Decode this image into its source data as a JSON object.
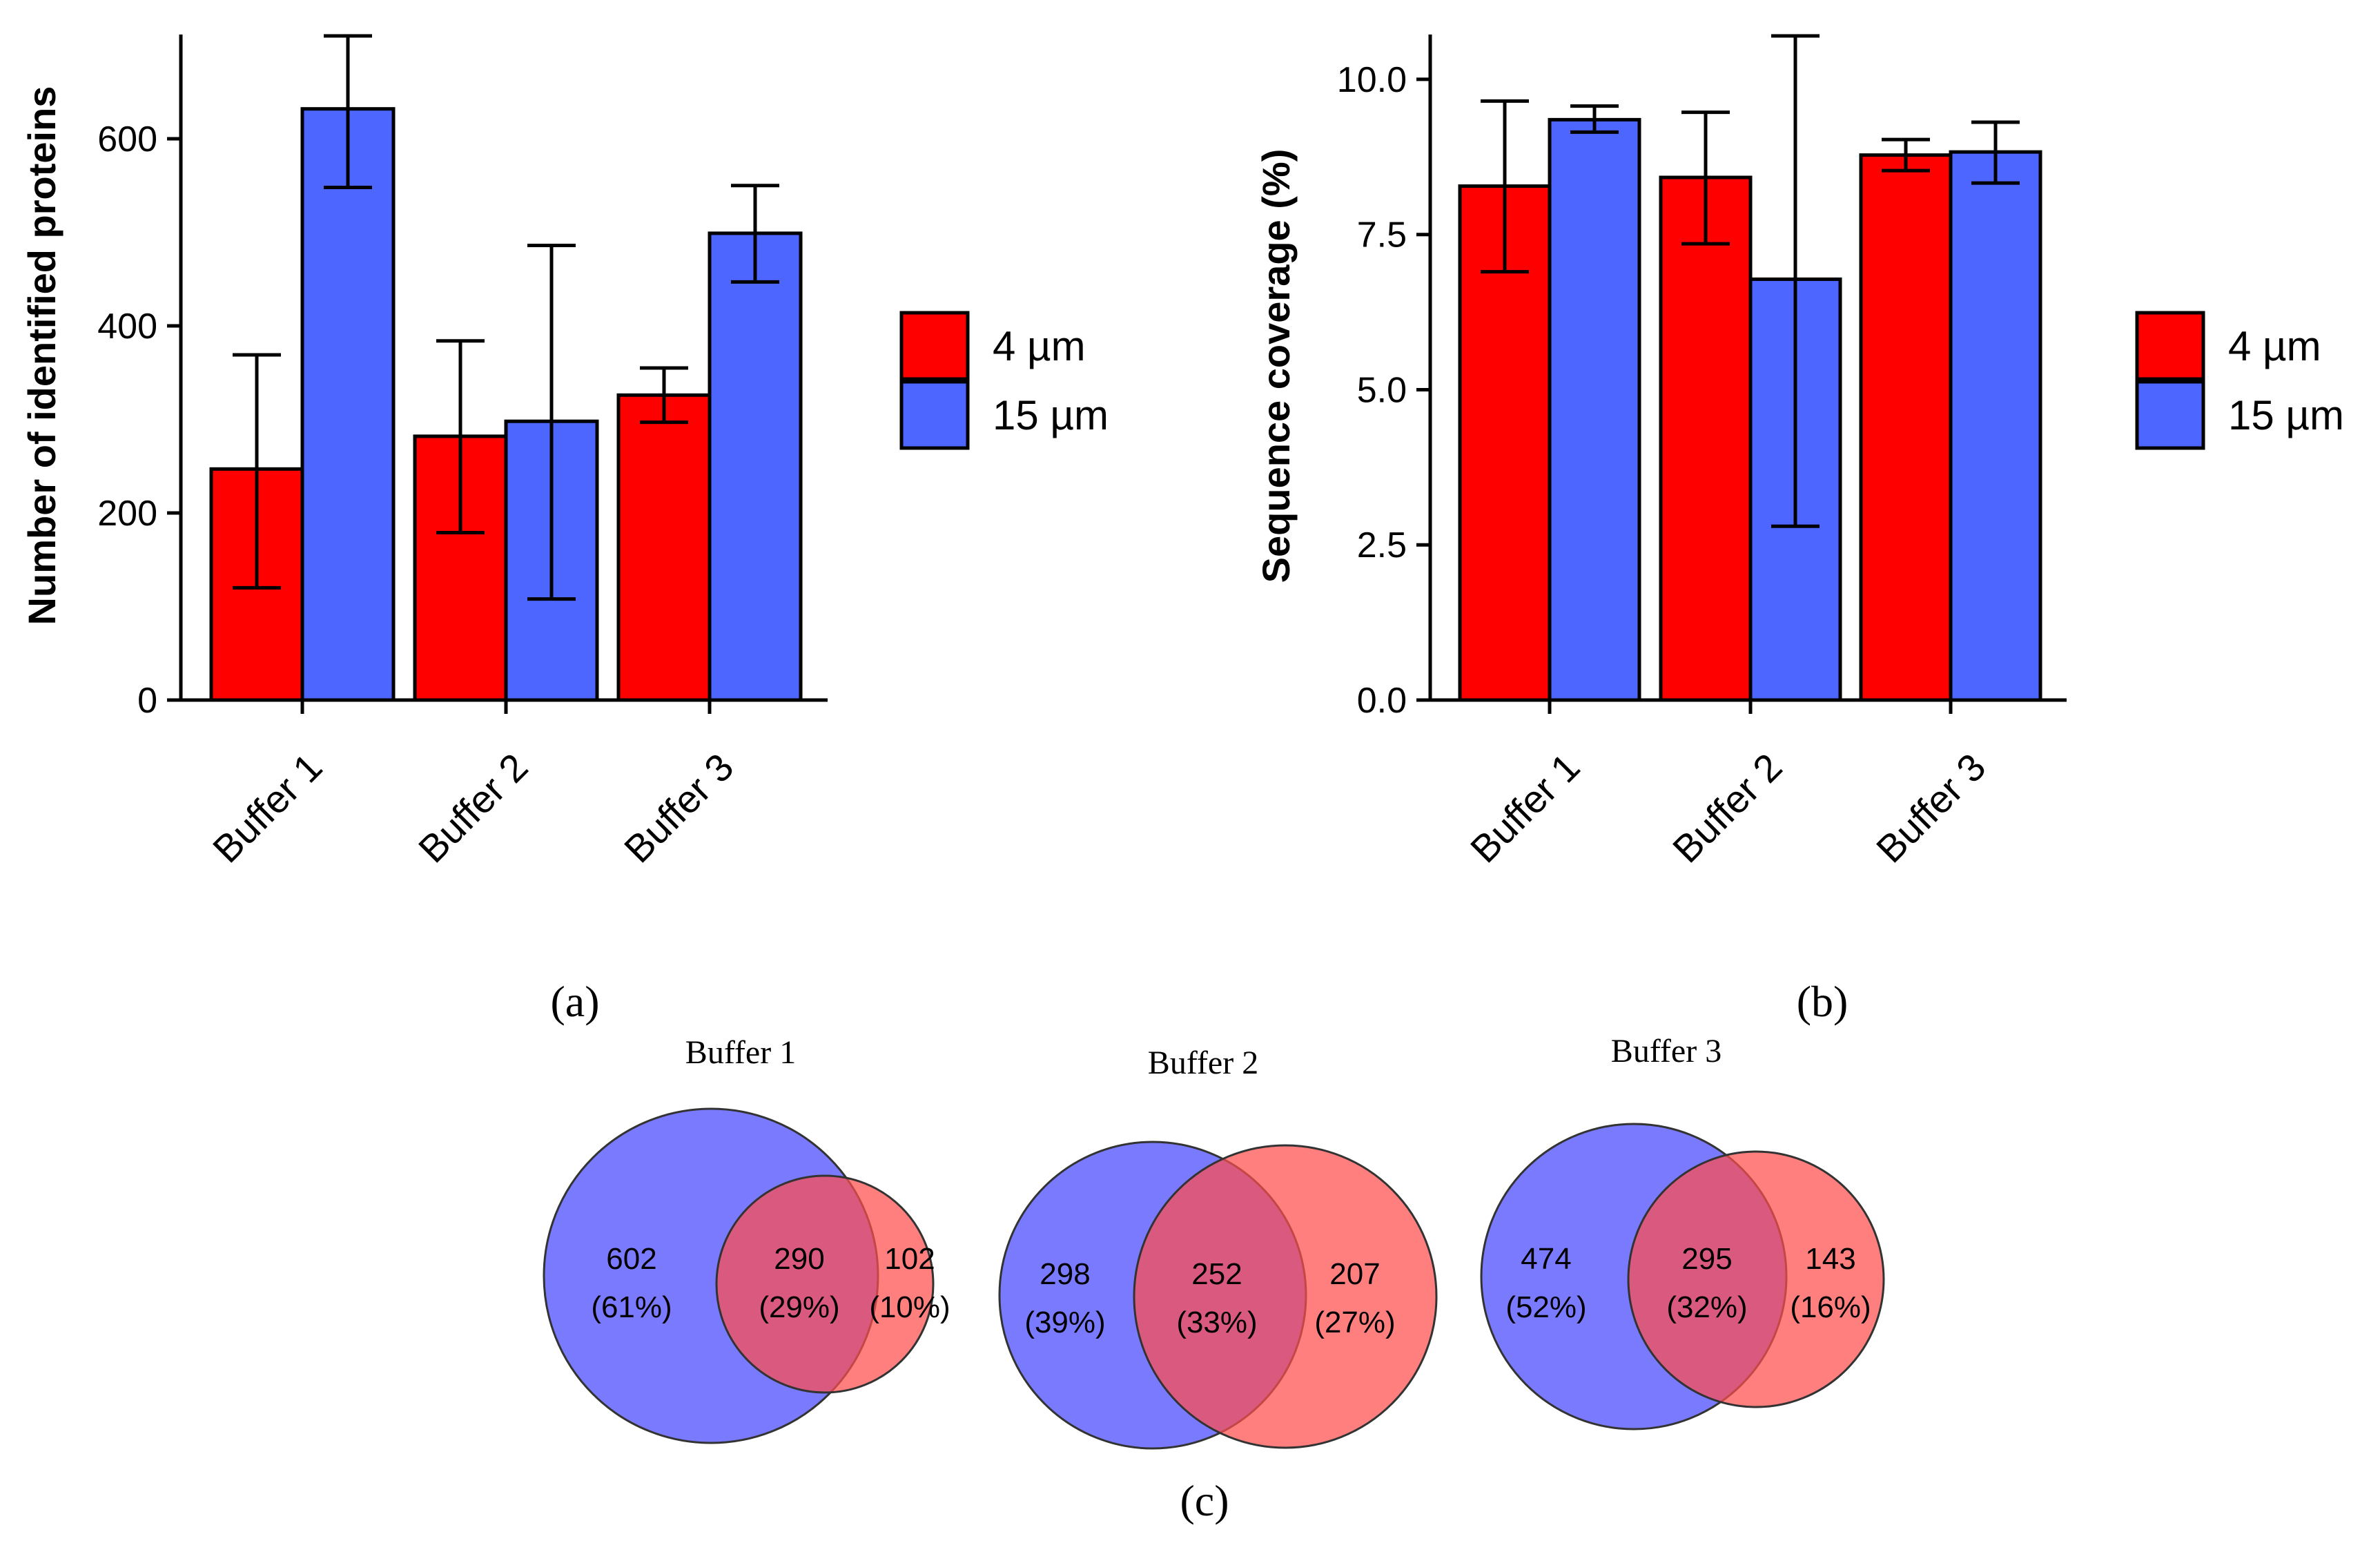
{
  "colors": {
    "s4": "#ff0000",
    "s15": "#4d66ff"
  },
  "chart_data": [
    {
      "type": "bar",
      "ylabel": "Number of identified proteins",
      "xlabel": "",
      "categories": [
        "Buffer 1",
        "Buffer 2",
        "Buffer 3"
      ],
      "ylim": [
        0,
        710
      ],
      "yticks": [
        0,
        200,
        400,
        600
      ],
      "ytick_labels": [
        "0",
        "200",
        "400",
        "600"
      ],
      "series": [
        {
          "name": "4 µm",
          "color": "#ff0000",
          "values": [
            247,
            282,
            326
          ],
          "err_low": [
            120,
            179,
            297
          ],
          "err_high": [
            369,
            384,
            355
          ]
        },
        {
          "name": "15 µm",
          "color": "#4d66ff",
          "values": [
            632,
            298,
            499
          ],
          "err_low": [
            548,
            108,
            447
          ],
          "err_high": [
            710,
            486,
            550
          ]
        }
      ],
      "legend": [
        "4 µm",
        "15 µm"
      ],
      "panel": "(a)"
    },
    {
      "type": "bar",
      "ylabel": "Sequence coverage (%)",
      "xlabel": "",
      "categories": [
        "Buffer 1",
        "Buffer 2",
        "Buffer 3"
      ],
      "ylim": [
        0,
        10.7
      ],
      "yticks": [
        0,
        2.5,
        5,
        7.5,
        10
      ],
      "ytick_labels": [
        "0.0",
        "2.5",
        "5.0",
        "7.5",
        "10.0"
      ],
      "series": [
        {
          "name": "4 µm",
          "color": "#ff0000",
          "values": [
            8.28,
            8.42,
            8.78
          ],
          "err_low": [
            6.9,
            7.35,
            8.53
          ],
          "err_high": [
            9.65,
            9.47,
            9.03
          ]
        },
        {
          "name": "15 µm",
          "color": "#4d66ff",
          "values": [
            9.35,
            6.78,
            8.83
          ],
          "err_low": [
            9.15,
            2.8,
            8.33
          ],
          "err_high": [
            9.57,
            10.7,
            9.31
          ]
        }
      ],
      "legend": [
        "4 µm",
        "15 µm"
      ],
      "panel": "(b)"
    },
    {
      "type": "venn",
      "panel": "(c)",
      "diagrams": [
        {
          "title": "Buffer 1",
          "only_15": "602",
          "only_15_pct": "(61%)",
          "both": "290",
          "both_pct": "(29%)",
          "only_4": "102",
          "only_4_pct": "(10%)"
        },
        {
          "title": "Buffer 2",
          "only_15": "298",
          "only_15_pct": "(39%)",
          "both": "252",
          "both_pct": "(33%)",
          "only_4": "207",
          "only_4_pct": "(27%)"
        },
        {
          "title": "Buffer 3",
          "only_15": "474",
          "only_15_pct": "(52%)",
          "both": "295",
          "both_pct": "(32%)",
          "only_4": "143",
          "only_4_pct": "(16%)"
        }
      ]
    }
  ]
}
